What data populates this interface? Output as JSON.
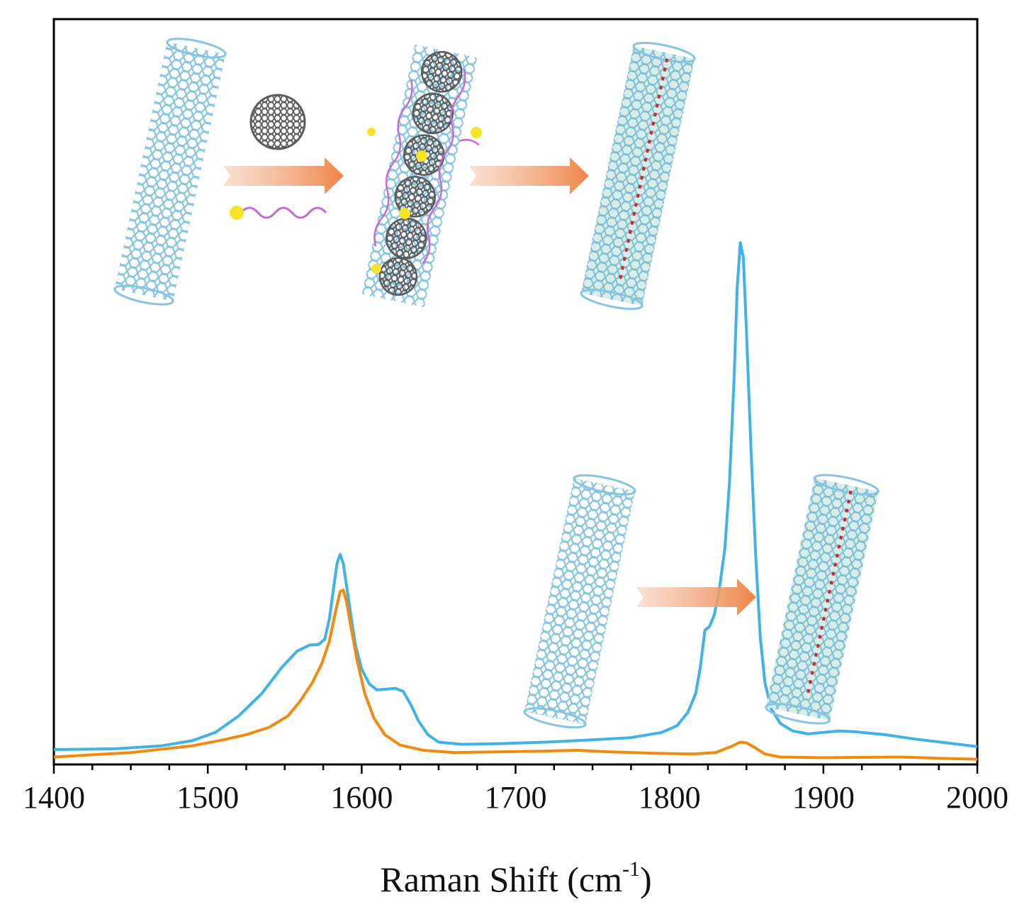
{
  "chart_data": {
    "type": "line",
    "xlabel": "Raman Shift (cm",
    "xlabel_sup": "-1",
    "xlabel_close": ")",
    "xlim": [
      1400,
      2000
    ],
    "xticks": [
      "1400",
      "1500",
      "1600",
      "1700",
      "1800",
      "1900",
      "2000"
    ],
    "ylim": [
      0,
      1
    ],
    "y_ticks_shown": false,
    "grid": false,
    "legend": "none",
    "series": [
      {
        "color": "#3fb2e6",
        "points": [
          [
            1400,
            0.02
          ],
          [
            1440,
            0.021
          ],
          [
            1470,
            0.025
          ],
          [
            1490,
            0.032
          ],
          [
            1505,
            0.043
          ],
          [
            1520,
            0.065
          ],
          [
            1535,
            0.095
          ],
          [
            1548,
            0.13
          ],
          [
            1558,
            0.152
          ],
          [
            1566,
            0.16
          ],
          [
            1572,
            0.161
          ],
          [
            1576,
            0.168
          ],
          [
            1579,
            0.195
          ],
          [
            1582,
            0.24
          ],
          [
            1584,
            0.27
          ],
          [
            1586,
            0.282
          ],
          [
            1588,
            0.27
          ],
          [
            1590,
            0.242
          ],
          [
            1593,
            0.2
          ],
          [
            1596,
            0.16
          ],
          [
            1600,
            0.128
          ],
          [
            1605,
            0.108
          ],
          [
            1610,
            0.1
          ],
          [
            1616,
            0.101
          ],
          [
            1622,
            0.102
          ],
          [
            1627,
            0.098
          ],
          [
            1632,
            0.08
          ],
          [
            1637,
            0.058
          ],
          [
            1643,
            0.04
          ],
          [
            1650,
            0.03
          ],
          [
            1665,
            0.027
          ],
          [
            1690,
            0.028
          ],
          [
            1720,
            0.03
          ],
          [
            1750,
            0.033
          ],
          [
            1775,
            0.036
          ],
          [
            1795,
            0.043
          ],
          [
            1805,
            0.052
          ],
          [
            1812,
            0.07
          ],
          [
            1817,
            0.095
          ],
          [
            1820,
            0.13
          ],
          [
            1823,
            0.18
          ],
          [
            1826,
            0.185
          ],
          [
            1829,
            0.2
          ],
          [
            1832,
            0.23
          ],
          [
            1836,
            0.29
          ],
          [
            1839,
            0.38
          ],
          [
            1842,
            0.52
          ],
          [
            1844,
            0.64
          ],
          [
            1846,
            0.7
          ],
          [
            1848,
            0.68
          ],
          [
            1850,
            0.58
          ],
          [
            1853,
            0.42
          ],
          [
            1856,
            0.28
          ],
          [
            1859,
            0.17
          ],
          [
            1862,
            0.11
          ],
          [
            1866,
            0.075
          ],
          [
            1872,
            0.055
          ],
          [
            1880,
            0.045
          ],
          [
            1890,
            0.041
          ],
          [
            1900,
            0.043
          ],
          [
            1910,
            0.045
          ],
          [
            1920,
            0.044
          ],
          [
            1940,
            0.04
          ],
          [
            1960,
            0.034
          ],
          [
            1980,
            0.029
          ],
          [
            2000,
            0.024
          ]
        ]
      },
      {
        "color": "#f28a0f",
        "points": [
          [
            1400,
            0.01
          ],
          [
            1450,
            0.016
          ],
          [
            1490,
            0.025
          ],
          [
            1510,
            0.033
          ],
          [
            1525,
            0.04
          ],
          [
            1540,
            0.05
          ],
          [
            1552,
            0.065
          ],
          [
            1560,
            0.085
          ],
          [
            1568,
            0.11
          ],
          [
            1574,
            0.135
          ],
          [
            1579,
            0.165
          ],
          [
            1583,
            0.205
          ],
          [
            1586,
            0.232
          ],
          [
            1588,
            0.234
          ],
          [
            1590,
            0.22
          ],
          [
            1593,
            0.185
          ],
          [
            1597,
            0.14
          ],
          [
            1602,
            0.095
          ],
          [
            1608,
            0.062
          ],
          [
            1615,
            0.04
          ],
          [
            1625,
            0.026
          ],
          [
            1640,
            0.019
          ],
          [
            1660,
            0.016
          ],
          [
            1690,
            0.017
          ],
          [
            1720,
            0.018
          ],
          [
            1740,
            0.019
          ],
          [
            1760,
            0.017
          ],
          [
            1790,
            0.015
          ],
          [
            1815,
            0.014
          ],
          [
            1830,
            0.016
          ],
          [
            1840,
            0.024
          ],
          [
            1846,
            0.03
          ],
          [
            1850,
            0.029
          ],
          [
            1856,
            0.022
          ],
          [
            1862,
            0.014
          ],
          [
            1872,
            0.01
          ],
          [
            1900,
            0.009
          ],
          [
            1950,
            0.01
          ],
          [
            1980,
            0.008
          ],
          [
            2000,
            0.007
          ]
        ]
      }
    ]
  },
  "inset": {
    "nanotube_color": "#87c4e0",
    "filled_tube_color": "#8fc9bf",
    "chain_color": "#d0272b",
    "fullerene_color": "#5b5b5b",
    "molecule_head_color": "#f6e428",
    "molecule_tail_color": "#c76ad6",
    "arrow_color": "#ef8d5a"
  }
}
